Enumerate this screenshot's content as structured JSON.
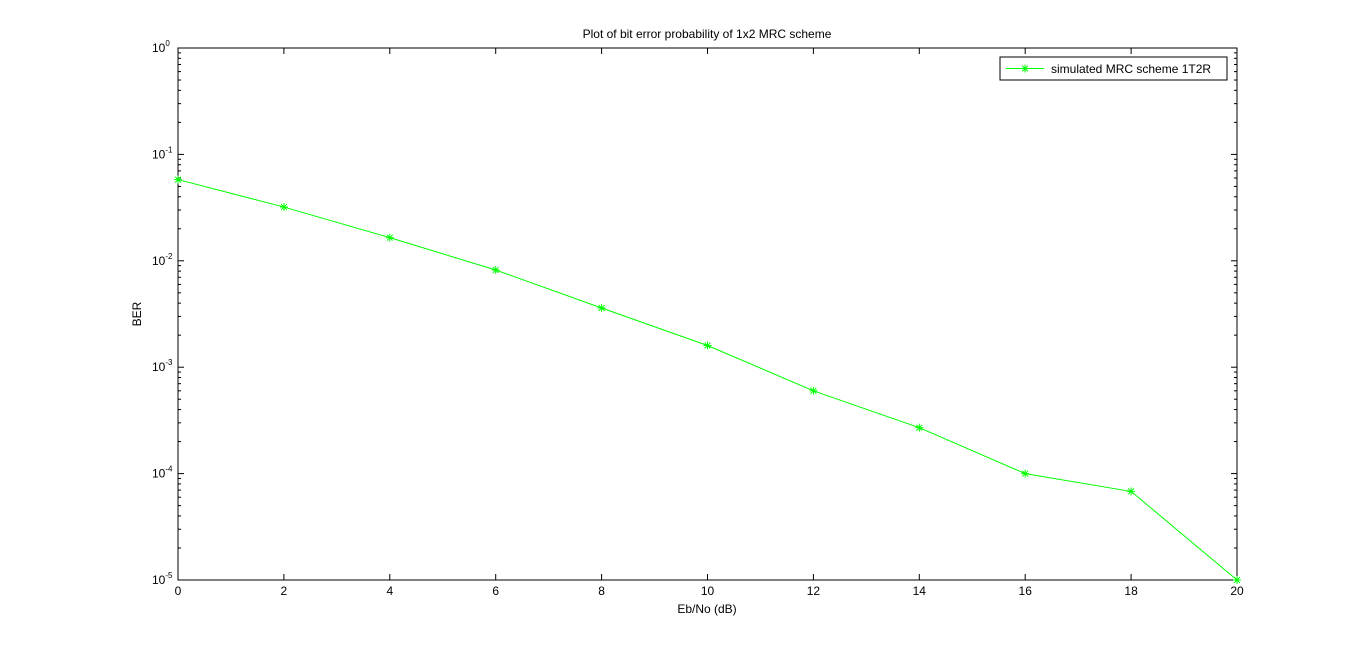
{
  "chart_data": {
    "type": "line",
    "title": "Plot of bit error probability of 1x2 MRC scheme",
    "xlabel": "Eb/No (dB)",
    "ylabel": "BER",
    "xlim": [
      0,
      20
    ],
    "ylim": [
      1e-05,
      1
    ],
    "yscale": "log",
    "x_ticks": [
      0,
      2,
      4,
      6,
      8,
      10,
      12,
      14,
      16,
      18,
      20
    ],
    "y_tick_exponents": [
      0,
      -1,
      -2,
      -3,
      -4,
      -5
    ],
    "grid": false,
    "legend_position": "top-right",
    "x": [
      0,
      2,
      4,
      6,
      8,
      10,
      12,
      14,
      16,
      18,
      20
    ],
    "series": [
      {
        "name": "simulated MRC scheme 1T2R",
        "color": "#00ff00",
        "marker": "asterisk",
        "values": [
          0.058,
          0.032,
          0.0165,
          0.0082,
          0.0036,
          0.0016,
          0.0006,
          0.00027,
          0.0001,
          6.8e-05,
          1e-05
        ]
      }
    ]
  }
}
